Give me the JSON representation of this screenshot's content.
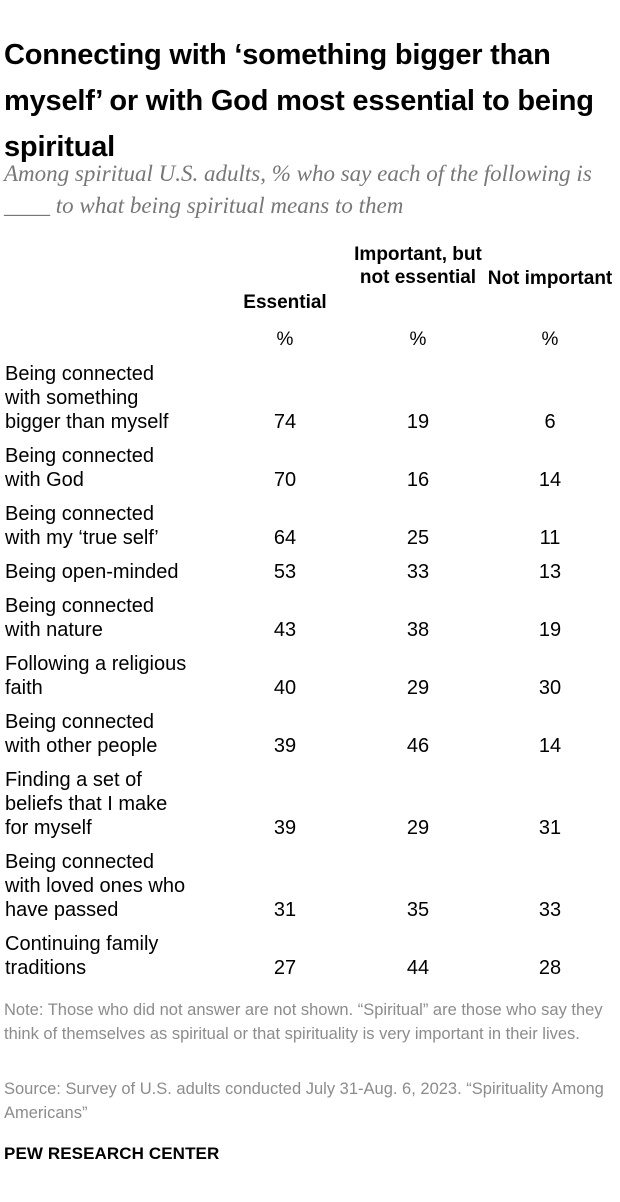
{
  "title": "Connecting with ‘something bigger than myself’ or with God most essential to being spiritual",
  "subtitle": "Among spiritual U.S. adults, % who say each of the following is ____ to what being spiritual means to them",
  "chart_data": {
    "type": "table",
    "columns": [
      {
        "label": "Essential",
        "unit": "%"
      },
      {
        "label": "Important, but not essential",
        "unit": "%"
      },
      {
        "label": "Not important",
        "unit": "%"
      }
    ],
    "rows": [
      {
        "label": "Being connected\nwith something\nbigger than myself",
        "values": [
          "74",
          "19",
          "6"
        ]
      },
      {
        "label": "Being connected\nwith God",
        "values": [
          "70",
          "16",
          "14"
        ]
      },
      {
        "label": "Being connected\nwith my ‘true self’",
        "values": [
          "64",
          "25",
          "11"
        ]
      },
      {
        "label": "Being open-minded",
        "values": [
          "53",
          "33",
          "13"
        ]
      },
      {
        "label": "Being connected\nwith nature",
        "values": [
          "43",
          "38",
          "19"
        ]
      },
      {
        "label": "Following a religious\nfaith",
        "values": [
          "40",
          "29",
          "30"
        ]
      },
      {
        "label": "Being connected\nwith other people",
        "values": [
          "39",
          "46",
          "14"
        ]
      },
      {
        "label": "Finding a set of\nbeliefs that I make\nfor myself",
        "values": [
          "39",
          "29",
          "31"
        ]
      },
      {
        "label": "Being connected\nwith loved ones who\nhave passed",
        "values": [
          "31",
          "35",
          "33"
        ]
      },
      {
        "label": "Continuing family\ntraditions",
        "values": [
          "27",
          "44",
          "28"
        ]
      }
    ]
  },
  "note": "Note: Those who did not answer are not shown. “Spiritual” are those who say they think of themselves as spiritual or that spirituality is very important in their lives.",
  "source": "Source: Survey of U.S. adults conducted July 31-Aug. 6, 2023. “Spirituality Among Americans”",
  "logo": "PEW RESEARCH CENTER"
}
